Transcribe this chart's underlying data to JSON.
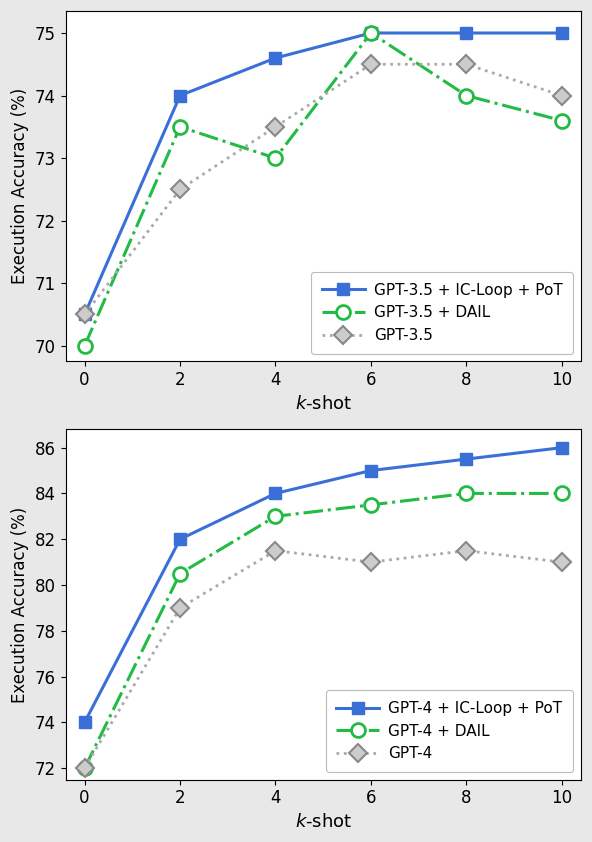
{
  "top": {
    "ylabel": "Execution Accuracy (%)",
    "xlabel": "$k$-shot",
    "x": [
      0,
      2,
      4,
      6,
      8,
      10
    ],
    "series": [
      {
        "label": "GPT-3.5 + IC-Loop + PoT",
        "y": [
          70.5,
          74.0,
          74.6,
          75.0,
          75.0,
          75.0
        ],
        "color": "#3a6fd8",
        "linestyle": "-",
        "marker": "s",
        "markersize": 8,
        "linewidth": 2.2,
        "markerfacecolor": "#3a6fd8",
        "markeredgecolor": "#3a6fd8",
        "markeredgewidth": 1.0,
        "zorder": 3
      },
      {
        "label": "GPT-3.5 + DAIL",
        "y": [
          70.0,
          73.5,
          73.0,
          75.0,
          74.0,
          73.6
        ],
        "color": "#22bb44",
        "linestyle": "-.",
        "marker": "o",
        "markersize": 10,
        "linewidth": 2.2,
        "markerfacecolor": "white",
        "markeredgecolor": "#22bb44",
        "markeredgewidth": 2.0,
        "zorder": 3
      },
      {
        "label": "GPT-3.5",
        "y": [
          70.5,
          72.5,
          73.5,
          74.5,
          74.5,
          74.0
        ],
        "color": "#aaaaaa",
        "linestyle": ":",
        "marker": "D",
        "markersize": 9,
        "linewidth": 2.0,
        "markerfacecolor": "#cccccc",
        "markeredgecolor": "#888888",
        "markeredgewidth": 1.5,
        "zorder": 3
      }
    ],
    "ylim": [
      69.75,
      75.35
    ],
    "yticks": [
      70,
      71,
      72,
      73,
      74,
      75
    ],
    "xlim": [
      -0.4,
      10.4
    ]
  },
  "bottom": {
    "ylabel": "Execution Accuracy (%)",
    "xlabel": "$k$-shot",
    "x": [
      0,
      2,
      4,
      6,
      8,
      10
    ],
    "series": [
      {
        "label": "GPT-4 + IC-Loop + PoT",
        "y": [
          74.0,
          82.0,
          84.0,
          85.0,
          85.5,
          86.0
        ],
        "color": "#3a6fd8",
        "linestyle": "-",
        "marker": "s",
        "markersize": 8,
        "linewidth": 2.2,
        "markerfacecolor": "#3a6fd8",
        "markeredgecolor": "#3a6fd8",
        "markeredgewidth": 1.0,
        "zorder": 3
      },
      {
        "label": "GPT-4 + DAIL",
        "y": [
          72.0,
          80.5,
          83.0,
          83.5,
          84.0,
          84.0
        ],
        "color": "#22bb44",
        "linestyle": "-.",
        "marker": "o",
        "markersize": 10,
        "linewidth": 2.2,
        "markerfacecolor": "white",
        "markeredgecolor": "#22bb44",
        "markeredgewidth": 2.0,
        "zorder": 3
      },
      {
        "label": "GPT-4",
        "y": [
          72.0,
          79.0,
          81.5,
          81.0,
          81.5,
          81.0
        ],
        "color": "#aaaaaa",
        "linestyle": ":",
        "marker": "D",
        "markersize": 9,
        "linewidth": 2.0,
        "markerfacecolor": "#cccccc",
        "markeredgecolor": "#888888",
        "markeredgewidth": 1.5,
        "zorder": 3
      }
    ],
    "ylim": [
      71.5,
      86.8
    ],
    "yticks": [
      72,
      74,
      76,
      78,
      80,
      82,
      84,
      86
    ],
    "xlim": [
      -0.4,
      10.4
    ]
  },
  "bg_color": "#e8e8e8",
  "plot_bg": "white",
  "legend_fontsize": 11,
  "axis_labelsize": 13,
  "tick_labelsize": 12
}
